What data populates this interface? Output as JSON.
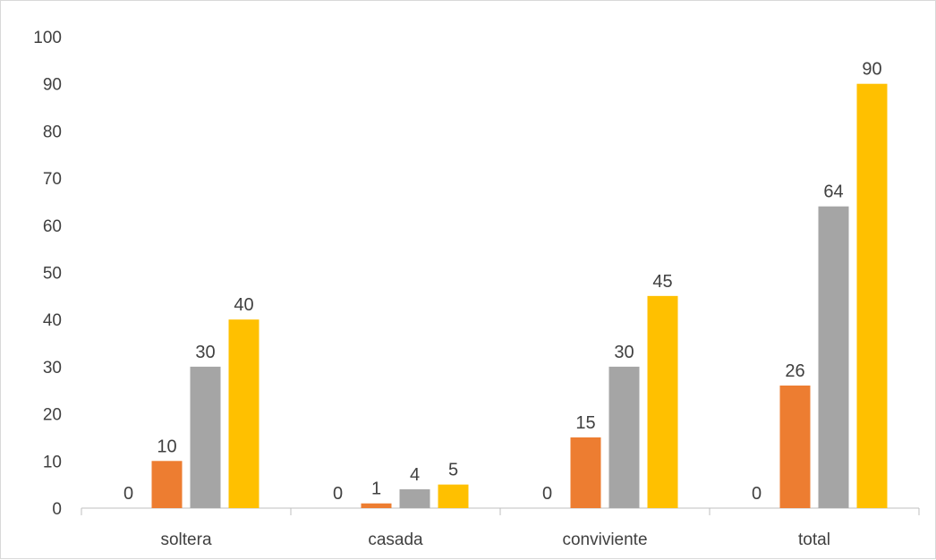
{
  "chart_data": {
    "type": "bar",
    "categories": [
      "soltera",
      "casada",
      "conviviente",
      "total"
    ],
    "series": [
      {
        "values": [
          0,
          0,
          0,
          0
        ],
        "color": "#5B9BD5"
      },
      {
        "values": [
          10,
          1,
          15,
          26
        ],
        "color": "#ED7D31"
      },
      {
        "values": [
          30,
          4,
          30,
          64
        ],
        "color": "#A5A5A5"
      },
      {
        "values": [
          40,
          5,
          45,
          90
        ],
        "color": "#FFC000"
      }
    ],
    "ylim": [
      0,
      100
    ],
    "yticks": [
      0,
      10,
      20,
      30,
      40,
      50,
      60,
      70,
      80,
      90,
      100
    ],
    "grid": false,
    "data_labels": true,
    "colors": {
      "axis": "#bfbfbf",
      "text": "#404040",
      "border": "#d9d9d9"
    }
  }
}
